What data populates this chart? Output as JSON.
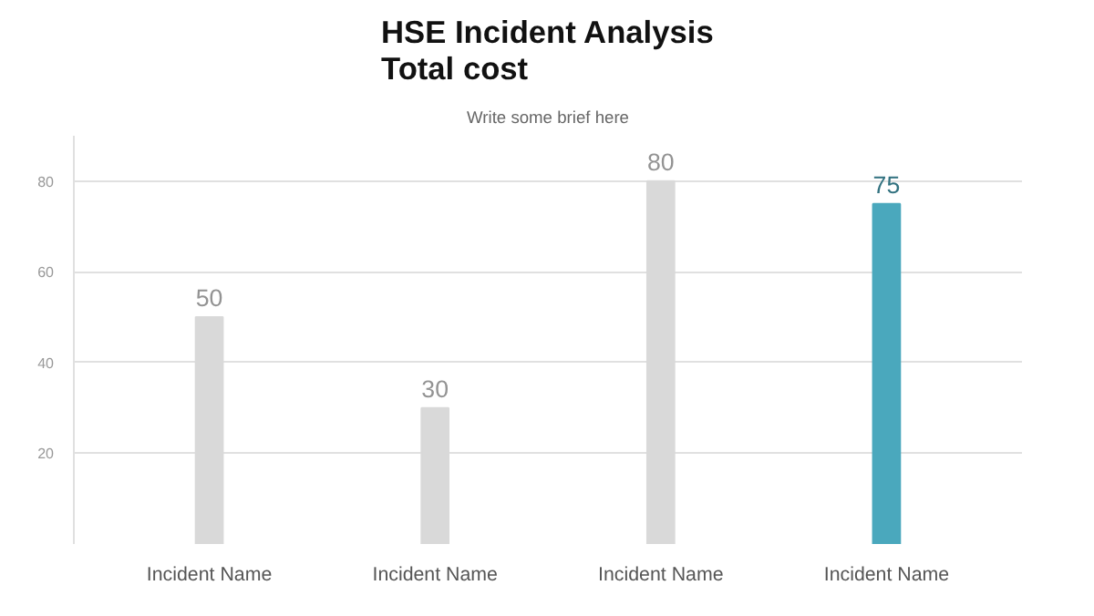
{
  "chart_data": {
    "type": "bar",
    "title": "HSE Incident Analysis\nTotal cost",
    "subtitle": "Write some brief here",
    "categories": [
      "Incident Name",
      "Incident Name",
      "Incident Name",
      "Incident Name"
    ],
    "values": [
      50,
      30,
      80,
      75
    ],
    "colors": [
      "#d9d9d9",
      "#d9d9d9",
      "#d9d9d9",
      "#4aa8bd"
    ],
    "data_labels": true,
    "ylim": [
      0,
      90
    ],
    "yticks": [
      20,
      40,
      60,
      80
    ],
    "grid": "y"
  }
}
